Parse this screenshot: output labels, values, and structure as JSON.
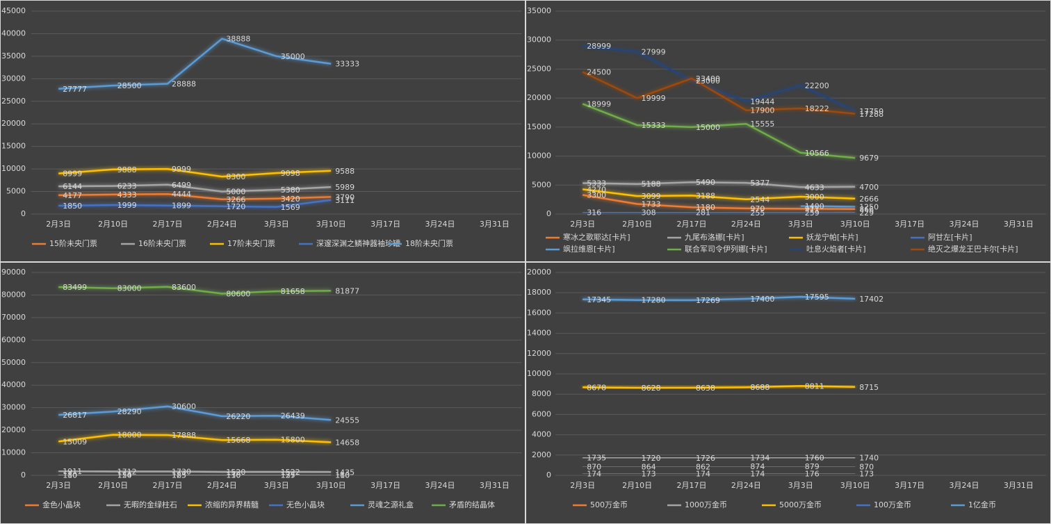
{
  "chart_data": [
    {
      "type": "line",
      "categories": [
        "2月3日",
        "2月10日",
        "2月17日",
        "2月24日",
        "3月3日",
        "3月10日",
        "3月17日",
        "3月24日",
        "3月31日"
      ],
      "ylim": [
        0,
        45000
      ],
      "yticks": [
        0,
        5000,
        10000,
        15000,
        20000,
        25000,
        30000,
        35000,
        40000,
        45000
      ],
      "grid": true,
      "series": [
        {
          "name": "15阶未央门票",
          "color": "#ed7d31",
          "values": [
            4177,
            4333,
            4444,
            3266,
            3420,
            3790,
            null,
            null,
            null
          ]
        },
        {
          "name": "16阶未央门票",
          "color": "#a5a5a5",
          "values": [
            6144,
            6233,
            6499,
            5000,
            5380,
            5989,
            null,
            null,
            null
          ]
        },
        {
          "name": "17阶未央门票",
          "color": "#ffc000",
          "values": [
            8999,
            9888,
            9999,
            8300,
            9098,
            9588,
            null,
            null,
            null
          ]
        },
        {
          "name": "深邃深渊之鳞神器袖珍罐",
          "color": "#4472c4",
          "values": [
            1850,
            1999,
            1899,
            1720,
            1569,
            3111,
            null,
            null,
            null
          ]
        },
        {
          "name": "18阶未央门票",
          "color": "#5b9bd5",
          "values": [
            27777,
            28500,
            28888,
            38888,
            35000,
            33333,
            null,
            null,
            null
          ]
        }
      ]
    },
    {
      "type": "line",
      "categories": [
        "2月3日",
        "2月10日",
        "2月17日",
        "2月24日",
        "3月3日",
        "3月10日",
        "3月17日",
        "3月24日",
        "3月31日"
      ],
      "ylim": [
        0,
        35000
      ],
      "yticks": [
        0,
        5000,
        10000,
        15000,
        20000,
        25000,
        30000,
        35000
      ],
      "grid": true,
      "series": [
        {
          "name": "寒冰之歌耶达[卡片]",
          "color": "#ed7d31",
          "values": [
            3300,
            1733,
            1180,
            970,
            911,
            866,
            null,
            null,
            null
          ]
        },
        {
          "name": "九尾布洛娜[卡片]",
          "color": "#a5a5a5",
          "values": [
            5333,
            5188,
            5490,
            5377,
            4633,
            4700,
            null,
            null,
            null
          ]
        },
        {
          "name": "妖龙宁帕[卡片]",
          "color": "#ffc000",
          "values": [
            4270,
            3099,
            3188,
            2544,
            3000,
            2666,
            null,
            null,
            null
          ]
        },
        {
          "name": "阿甘左[卡片]",
          "color": "#4472c4",
          "values": [
            316,
            308,
            281,
            255,
            259,
            229,
            null,
            null,
            null
          ]
        },
        {
          "name": "飒拉维恩[卡片]",
          "color": "#5b9bd5",
          "values": [
            null,
            null,
            null,
            null,
            1400,
            1250,
            null,
            null,
            null
          ]
        },
        {
          "name": "联合军司令伊列娜[卡片]",
          "color": "#70ad47",
          "values": [
            18999,
            15333,
            15000,
            15555,
            10566,
            9679,
            null,
            null,
            null
          ]
        },
        {
          "name": "吐息火焰者[卡片]",
          "color": "#264478",
          "values": [
            28999,
            27999,
            23000,
            19444,
            22200,
            17750,
            null,
            null,
            null
          ]
        },
        {
          "name": "绝灭之爆龙王巴卡尔[卡片]",
          "color": "#9e480e",
          "values": [
            24500,
            19999,
            23400,
            17900,
            18222,
            17288,
            null,
            null,
            null
          ]
        }
      ]
    },
    {
      "type": "line",
      "categories": [
        "2月3日",
        "2月10日",
        "2月17日",
        "2月24日",
        "3月3日",
        "3月10日",
        "3月17日",
        "3月24日",
        "3月31日"
      ],
      "ylim": [
        0,
        90000
      ],
      "yticks": [
        0,
        10000,
        20000,
        30000,
        40000,
        50000,
        60000,
        70000,
        80000,
        90000
      ],
      "grid": true,
      "series": [
        {
          "name": "金色小晶块",
          "color": "#ed7d31",
          "values": [
            180,
            150,
            183,
            130,
            137,
            160,
            null,
            null,
            null
          ]
        },
        {
          "name": "无暇的金绿柱石",
          "color": "#a5a5a5",
          "values": [
            1911,
            1712,
            1730,
            1520,
            1522,
            1435,
            null,
            null,
            null
          ]
        },
        {
          "name": "浓缩的异界精髓",
          "color": "#ffc000",
          "values": [
            15009,
            18000,
            17888,
            15668,
            15800,
            14658,
            null,
            null,
            null
          ]
        },
        {
          "name": "无色小晶块",
          "color": "#4472c4",
          "values": [
            110,
            124,
            125,
            110,
            125,
            110,
            null,
            null,
            null
          ]
        },
        {
          "name": "灵魂之源礼盒",
          "color": "#5b9bd5",
          "values": [
            26817,
            28290,
            30600,
            26220,
            26439,
            24555,
            null,
            null,
            null
          ]
        },
        {
          "name": "矛盾的结晶体",
          "color": "#70ad47",
          "values": [
            83499,
            83000,
            83600,
            80600,
            81658,
            81877,
            null,
            null,
            null
          ]
        }
      ]
    },
    {
      "type": "line",
      "categories": [
        "2月3日",
        "2月10日",
        "2月17日",
        "2月24日",
        "3月3日",
        "3月10日",
        "3月17日",
        "3月24日",
        "3月31日"
      ],
      "ylim": [
        0,
        20000
      ],
      "yticks": [
        0,
        2000,
        4000,
        6000,
        8000,
        10000,
        12000,
        14000,
        16000,
        18000,
        20000
      ],
      "grid": true,
      "series": [
        {
          "name": "500万金币",
          "color": "#ed7d31",
          "values": [
            870,
            864,
            862,
            874,
            879,
            870,
            null,
            null,
            null
          ]
        },
        {
          "name": "1000万金币",
          "color": "#a5a5a5",
          "values": [
            1735,
            1720,
            1726,
            1734,
            1760,
            1740,
            null,
            null,
            null
          ]
        },
        {
          "name": "5000万金币",
          "color": "#ffc000",
          "values": [
            8678,
            8628,
            8638,
            8688,
            8811,
            8715,
            null,
            null,
            null
          ]
        },
        {
          "name": "100万金币",
          "color": "#4472c4",
          "values": [
            174,
            173,
            174,
            174,
            176,
            173,
            null,
            null,
            null
          ]
        },
        {
          "name": "1亿金币",
          "color": "#5b9bd5",
          "values": [
            17345,
            17280,
            17269,
            17400,
            17595,
            17402,
            null,
            null,
            null
          ]
        }
      ]
    }
  ]
}
